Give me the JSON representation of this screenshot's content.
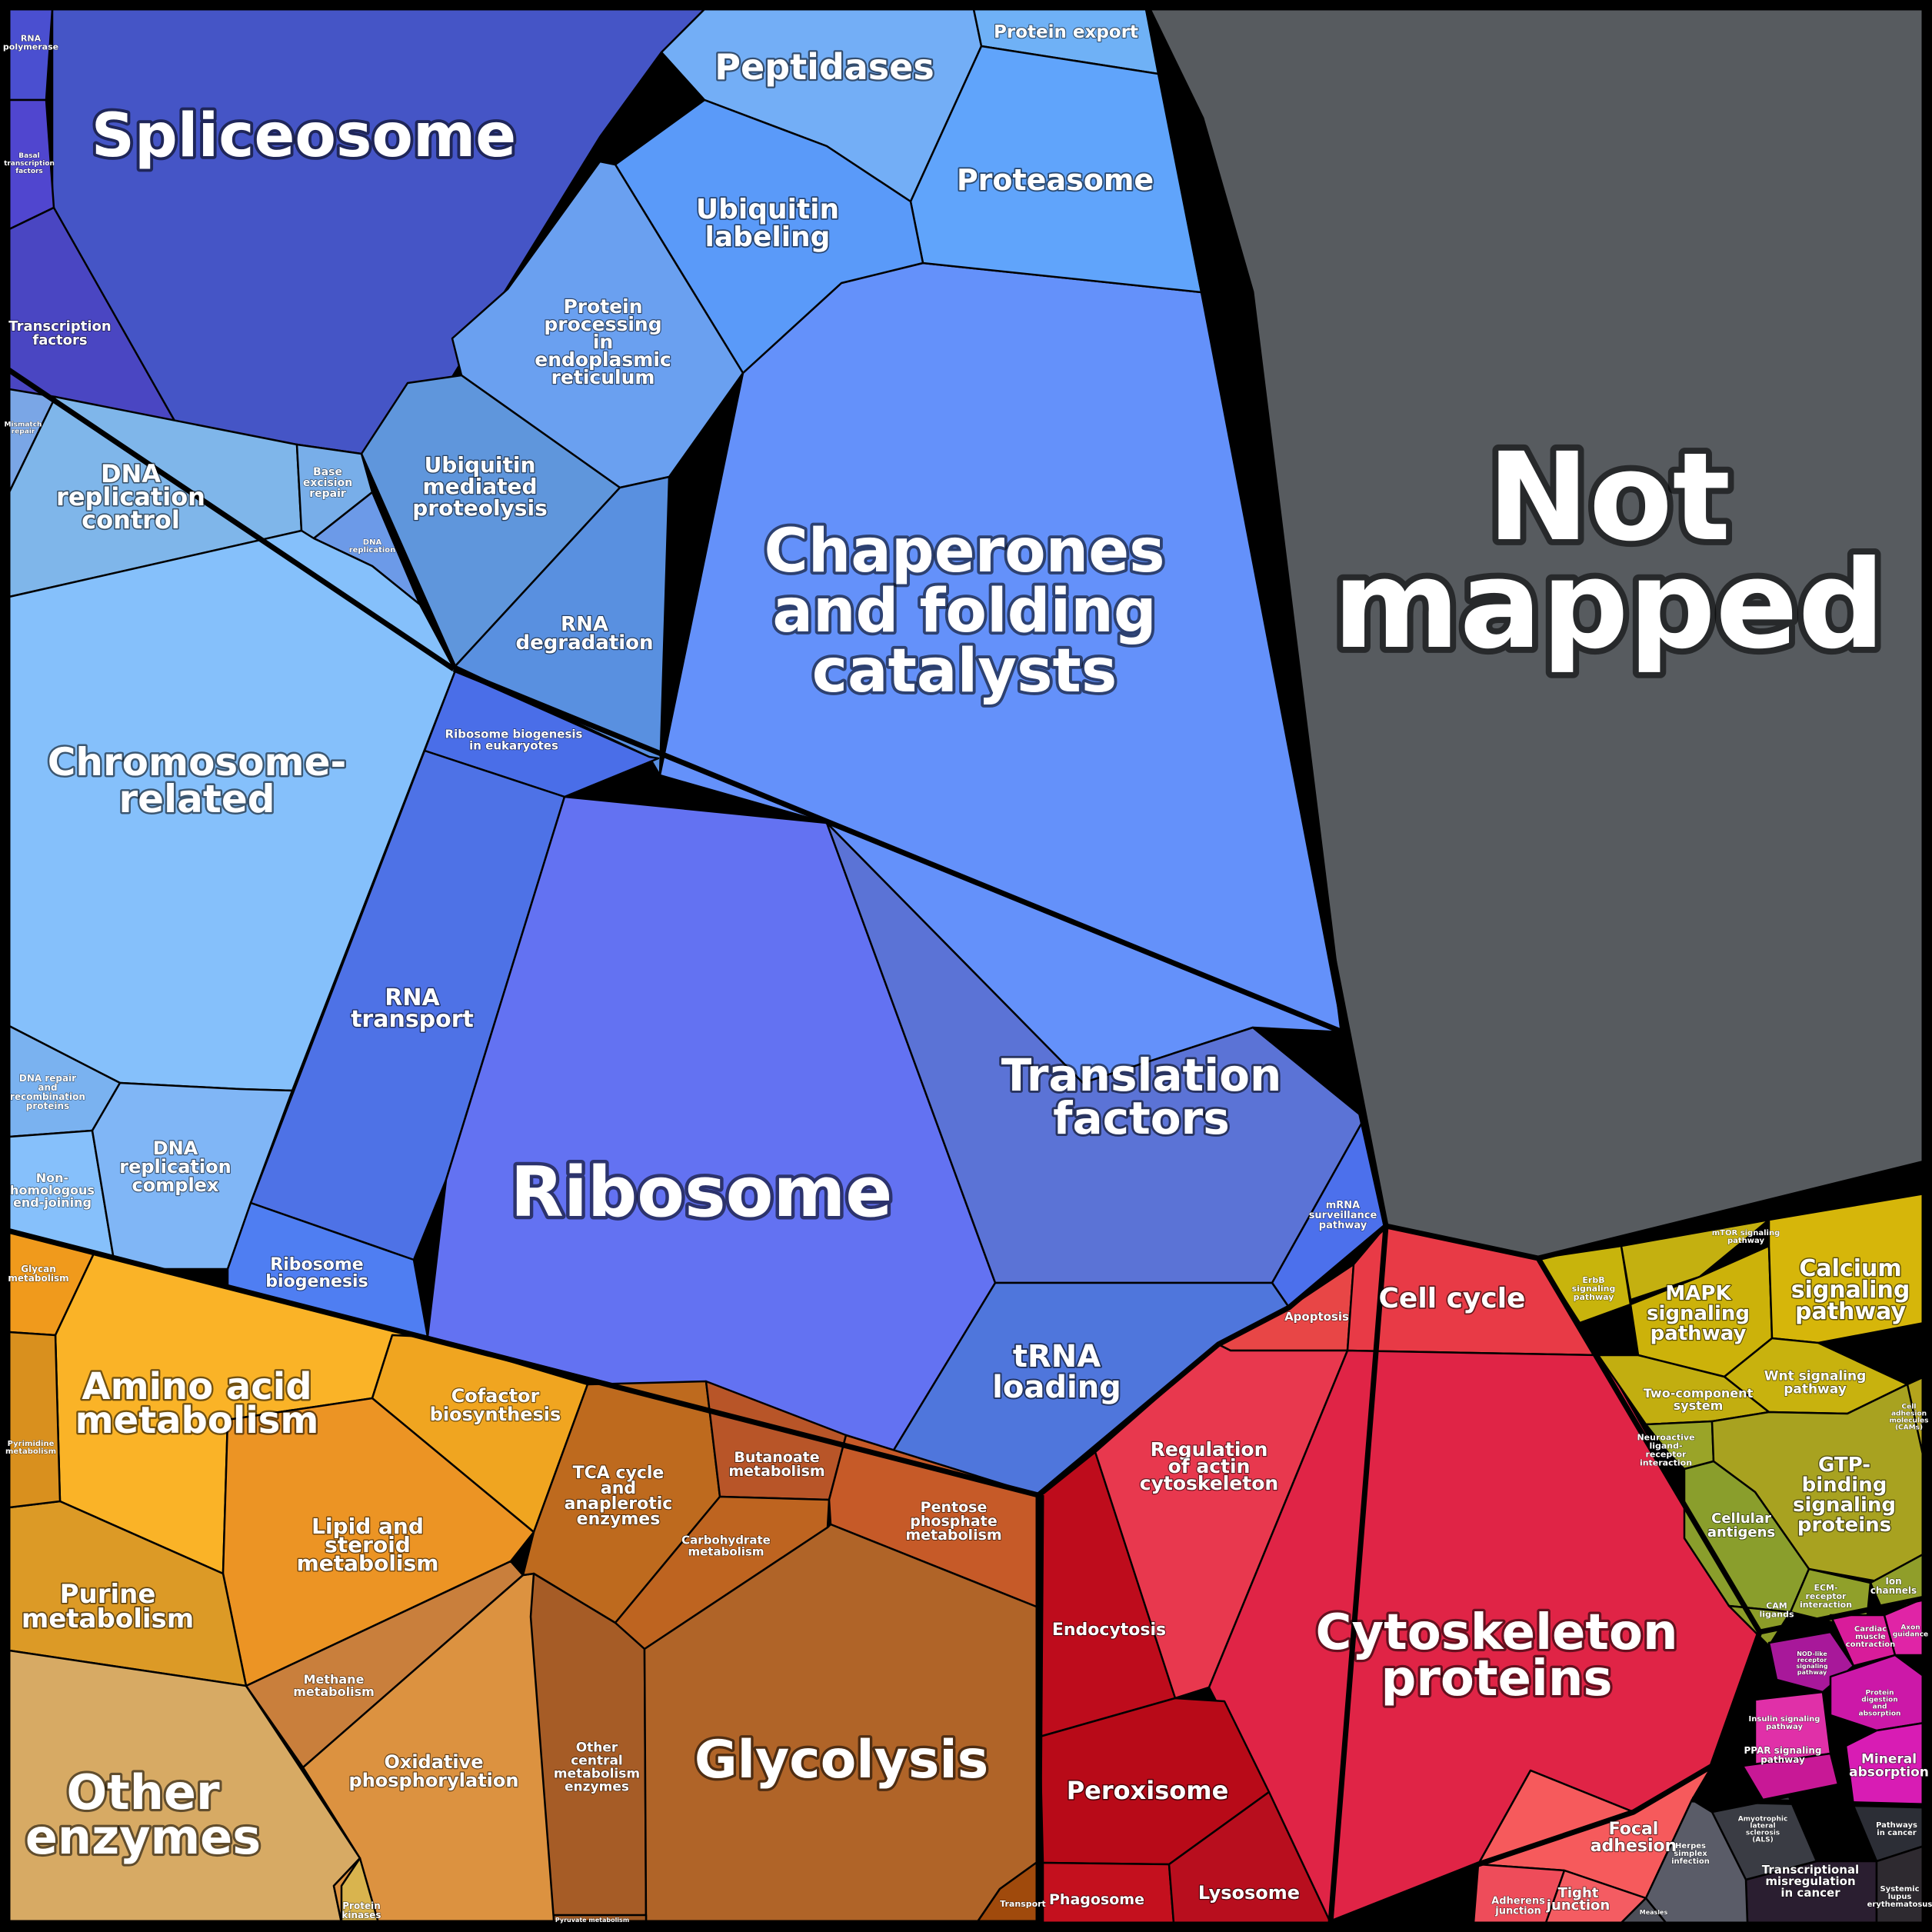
{
  "cells": {
    "not_mapped": {
      "label": [
        "Not",
        "mapped"
      ],
      "color": "#575b5f"
    },
    "chaperones": {
      "label": [
        "Chaperones",
        "and folding",
        "catalysts"
      ],
      "color": "#6491fa"
    },
    "spliceosome": {
      "label": [
        "Spliceosome"
      ],
      "color": "#4555c6"
    },
    "peptidases": {
      "label": [
        "Peptidases"
      ],
      "color": "#73aef6"
    },
    "protein_export": {
      "label": [
        "Protein export"
      ],
      "color": "#6fb1f6"
    },
    "proteasome": {
      "label": [
        "Proteasome"
      ],
      "color": "#60a4fb"
    },
    "ubiquitin_labeling": {
      "label": [
        "Ubiquitin",
        "labeling"
      ],
      "color": "#5a9af9"
    },
    "protein_processing_er": {
      "label": [
        "Protein",
        "processing",
        "in",
        "endoplasmic",
        "reticulum"
      ],
      "color": "#6aa0f0"
    },
    "ubiquitin_mediated_proteolysis": {
      "label": [
        "Ubiquitin",
        "mediated",
        "proteolysis"
      ],
      "color": "#5f96dc"
    },
    "rna_degradation": {
      "label": [
        "RNA",
        "degradation"
      ],
      "color": "#5990e0"
    },
    "rna_polymerase": {
      "label": [
        "RNA",
        "polymerase"
      ],
      "color": "#4a4fd0"
    },
    "basal_transcription_factors": {
      "label": [
        "Basal",
        "transcription",
        "factors"
      ],
      "color": "#5046cf"
    },
    "transcription_factors": {
      "label": [
        "Transcription",
        "factors"
      ],
      "color": "#4a46c2"
    },
    "mismatch_repair": {
      "label": [
        "Mismatch",
        "repair"
      ],
      "color": "#7aa6e6"
    },
    "dna_replication_control": {
      "label": [
        "DNA",
        "replication",
        "control"
      ],
      "color": "#7fb6ea"
    },
    "base_excision_repair": {
      "label": [
        "Base",
        "excision",
        "repair"
      ],
      "color": "#78aee9"
    },
    "dna_replication": {
      "label": [
        "DNA",
        "replication"
      ],
      "color": "#6c9ae8"
    },
    "chromosome_related": {
      "label": [
        "Chromosome-",
        "related"
      ],
      "color": "#85c0fb"
    },
    "dna_repair_recombination": {
      "label": [
        "DNA repair",
        "and",
        "recombination",
        "proteins"
      ],
      "color": "#7ab2f0"
    },
    "non_homologous_end_joining": {
      "label": [
        "Non-",
        "homologous",
        "end-joining"
      ],
      "color": "#86c0fb"
    },
    "dna_replication_complex": {
      "label": [
        "DNA",
        "replication",
        "complex"
      ],
      "color": "#80b6f6"
    },
    "ribosome_biogenesis_eukaryotes": {
      "label": [
        "Ribosome biogenesis",
        "in eukaryotes"
      ],
      "color": "#4a6ee8"
    },
    "rna_transport": {
      "label": [
        "RNA",
        "transport"
      ],
      "color": "#4e72e6"
    },
    "ribosome": {
      "label": [
        "Ribosome"
      ],
      "color": "#6372f2"
    },
    "translation_factors": {
      "label": [
        "Translation",
        "factors"
      ],
      "color": "#5b73d6"
    },
    "mrna_surveillance": {
      "label": [
        "mRNA",
        "surveillance",
        "pathway"
      ],
      "color": "#4c70ec"
    },
    "trna_loading": {
      "label": [
        "tRNA",
        "loading"
      ],
      "color": "#4f76dc"
    },
    "ribosome_biogenesis": {
      "label": [
        "Ribosome",
        "biogenesis"
      ],
      "color": "#4f7ef2"
    },
    "glycan_metabolism": {
      "label": [
        "Glycan",
        "metabolism"
      ],
      "color": "#f09a1c"
    },
    "amino_acid_metabolism": {
      "label": [
        "Amino acid",
        "metabolism"
      ],
      "color": "#fab327"
    },
    "cofactor_biosynthesis": {
      "label": [
        "Cofactor",
        "biosynthesis"
      ],
      "color": "#f0a520"
    },
    "lipid_steroid_metabolism": {
      "label": [
        "Lipid and",
        "steroid",
        "metabolism"
      ],
      "color": "#ec9424"
    },
    "purine_metabolism": {
      "label": [
        "Purine",
        "metabolism"
      ],
      "color": "#dc9a26"
    },
    "pyrimidine_metabolism": {
      "label": [
        "Pyrimidine",
        "metabolism"
      ],
      "color": "#d9901e"
    },
    "other_enzymes": {
      "label": [
        "Other",
        "enzymes"
      ],
      "color": "#d7aa64"
    },
    "methane_metabolism": {
      "label": [
        "Methane",
        "metabolism"
      ],
      "color": "#c97f3c"
    },
    "oxidative_phosphorylation": {
      "label": [
        "Oxidative",
        "phosphorylation"
      ],
      "color": "#dc9240"
    },
    "protein_kinases": {
      "label": [
        "Protein",
        "kinases"
      ],
      "color": "#d9b44e"
    },
    "tca_cycle": {
      "label": [
        "TCA cycle",
        "and",
        "anaplerotic",
        "enzymes"
      ],
      "color": "#be6a1e"
    },
    "butanoate_metabolism": {
      "label": [
        "Butanoate",
        "metabolism"
      ],
      "color": "#b85528"
    },
    "carbohydrate_metabolism": {
      "label": [
        "Carbohydrate",
        "metabolism"
      ],
      "color": "#be6420"
    },
    "pentose_phosphate": {
      "label": [
        "Pentose",
        "phosphate",
        "metabolism"
      ],
      "color": "#c65a28"
    },
    "other_central_metabolism": {
      "label": [
        "Other",
        "central",
        "metabolism",
        "enzymes"
      ],
      "color": "#a65c26"
    },
    "glycolysis": {
      "label": [
        "Glycolysis"
      ],
      "color": "#b06428"
    },
    "pyruvate_metabolism": {
      "label": [
        "Pyruvate metabolism"
      ],
      "color": "#a05a24"
    },
    "transport": {
      "label": [
        "Transport"
      ],
      "color": "#a04a0c"
    },
    "apoptosis": {
      "label": [
        "Apoptosis"
      ],
      "color": "#e84646"
    },
    "cell_cycle": {
      "label": [
        "Cell cycle"
      ],
      "color": "#e83a46"
    },
    "regulation_actin": {
      "label": [
        "Regulation",
        "of actin",
        "cytoskeleton"
      ],
      "color": "#e8384e"
    },
    "cytoskeleton_proteins": {
      "label": [
        "Cytoskeleton",
        "proteins"
      ],
      "color": "#e02446"
    },
    "endocytosis": {
      "label": [
        "Endocytosis"
      ],
      "color": "#be0c1c"
    },
    "peroxisome": {
      "label": [
        "Peroxisome"
      ],
      "color": "#b80a18"
    },
    "phagosome": {
      "label": [
        "Phagosome"
      ],
      "color": "#c4101e"
    },
    "lysosome": {
      "label": [
        "Lysosome"
      ],
      "color": "#b80e1e"
    },
    "focal_adhesion": {
      "label": [
        "Focal",
        "adhesion"
      ],
      "color": "#f65a5c"
    },
    "adherens_junction": {
      "label": [
        "Adherens",
        "junction"
      ],
      "color": "#ee4c5a"
    },
    "tight_junction": {
      "label": [
        "Tight",
        "junction"
      ],
      "color": "#f45c62"
    },
    "erbb_signaling": {
      "label": [
        "ErbB",
        "signaling",
        "pathway"
      ],
      "color": "#c8b40c"
    },
    "mtor_signaling": {
      "label": [
        "mTOR signaling",
        "pathway"
      ],
      "color": "#c4b010"
    },
    "mapk_signaling": {
      "label": [
        "MAPK",
        "signaling",
        "pathway"
      ],
      "color": "#ccb20a"
    },
    "calcium_signaling": {
      "label": [
        "Calcium",
        "signaling",
        "pathway"
      ],
      "color": "#d6b60a"
    },
    "wnt_signaling": {
      "label": [
        "Wnt signaling",
        "pathway"
      ],
      "color": "#c8b20e"
    },
    "two_component": {
      "label": [
        "Two-component",
        "system"
      ],
      "color": "#c2ae10"
    },
    "cell_adhesion_molecules": {
      "label": [
        "Cell",
        "adhesion",
        "molecules",
        "(CAMs)"
      ],
      "color": "#b4a41c"
    },
    "neuroactive_ligand": {
      "label": [
        "Neuroactive",
        "ligand-",
        "receptor",
        "interaction"
      ],
      "color": "#9aa428"
    },
    "gtp_binding": {
      "label": [
        "GTP-",
        "binding",
        "signaling",
        "proteins"
      ],
      "color": "#a8a220"
    },
    "cellular_antigens": {
      "label": [
        "Cellular",
        "antigens"
      ],
      "color": "#8a9e2c"
    },
    "ecm_receptor": {
      "label": [
        "ECM-",
        "receptor",
        "interaction"
      ],
      "color": "#90a02a"
    },
    "cam_ligands": {
      "label": [
        "CAM",
        "ligands"
      ],
      "color": "#8c9c28"
    },
    "ion_channels": {
      "label": [
        "Ion",
        "channels"
      ],
      "color": "#909e2a"
    },
    "cardiac_muscle": {
      "label": [
        "Cardiac",
        "muscle",
        "contraction"
      ],
      "color": "#d81c9a"
    },
    "axon_guidance": {
      "label": [
        "Axon",
        "guidance"
      ],
      "color": "#e024a6"
    },
    "nod_like_receptor": {
      "label": [
        "NOD-like",
        "receptor",
        "signaling",
        "pathway"
      ],
      "color": "#a8189a"
    },
    "insulin_signaling": {
      "label": [
        "Insulin signaling",
        "pathway"
      ],
      "color": "#e030a8"
    },
    "protein_digestion": {
      "label": [
        "Protein",
        "digestion",
        "and",
        "absorption"
      ],
      "color": "#cc18a8"
    },
    "ppar_signaling": {
      "label": [
        "PPAR signaling",
        "pathway"
      ],
      "color": "#c81896"
    },
    "mineral_absorption": {
      "label": [
        "Mineral",
        "absorption"
      ],
      "color": "#d81cb4"
    },
    "als": {
      "label": [
        "Amyotrophic",
        "lateral",
        "sclerosis",
        "(ALS)"
      ],
      "color": "#3a3c44"
    },
    "pathways_in_cancer": {
      "label": [
        "Pathways",
        "in cancer"
      ],
      "color": "#2c2e36"
    },
    "transcriptional_misregulation": {
      "label": [
        "Transcriptional",
        "misregulation",
        "in cancer"
      ],
      "color": "#2a1e30"
    },
    "systemic_lupus": {
      "label": [
        "Systemic",
        "lupus",
        "erythematosus"
      ],
      "color": "#2e2a30"
    },
    "herpes_simplex": {
      "label": [
        "Herpes",
        "simplex",
        "infection"
      ],
      "color": "#5a5c68"
    },
    "measles": {
      "label": [
        "Measles"
      ],
      "color": "#4c4e58"
    }
  }
}
